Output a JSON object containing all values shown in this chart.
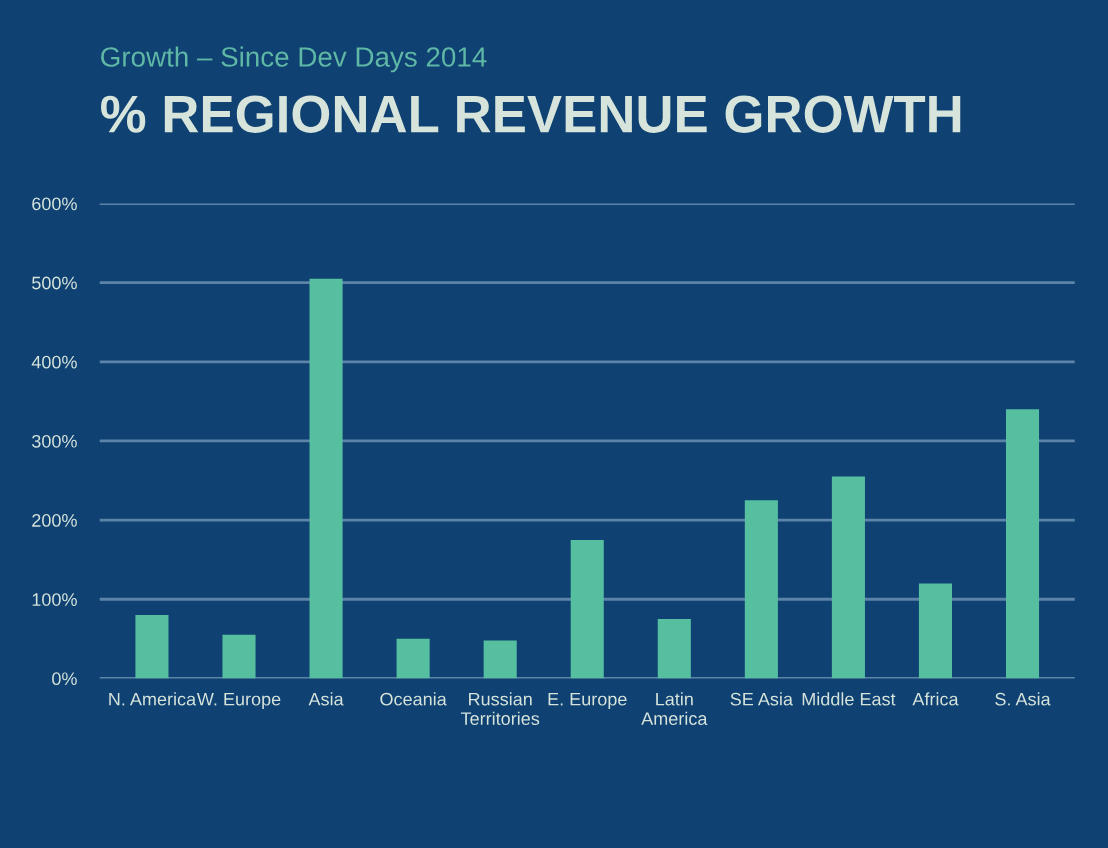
{
  "chart_data": {
    "type": "bar",
    "subtitle": "Growth – Since Dev Days 2014",
    "title": "% REGIONAL REVENUE GROWTH",
    "categories": [
      "N. America",
      "W. Europe",
      "Asia",
      "Oceania",
      "Russian\nTerritories",
      "E. Europe",
      "Latin\nAmerica",
      "SE Asia",
      "Middle East",
      "Africa",
      "S. Asia"
    ],
    "values": [
      80,
      55,
      505,
      50,
      48,
      175,
      75,
      225,
      255,
      120,
      340
    ],
    "color": "#55bfa0",
    "ylim": [
      0,
      600
    ],
    "yticks": [
      {
        "value": 0,
        "label": "0%"
      },
      {
        "value": 100,
        "label": "100%"
      },
      {
        "value": 200,
        "label": "200%"
      },
      {
        "value": 300,
        "label": "300%"
      },
      {
        "value": 400,
        "label": "400%"
      },
      {
        "value": 500,
        "label": "500%"
      },
      {
        "value": 600,
        "label": "600%"
      }
    ],
    "grid": "y"
  }
}
